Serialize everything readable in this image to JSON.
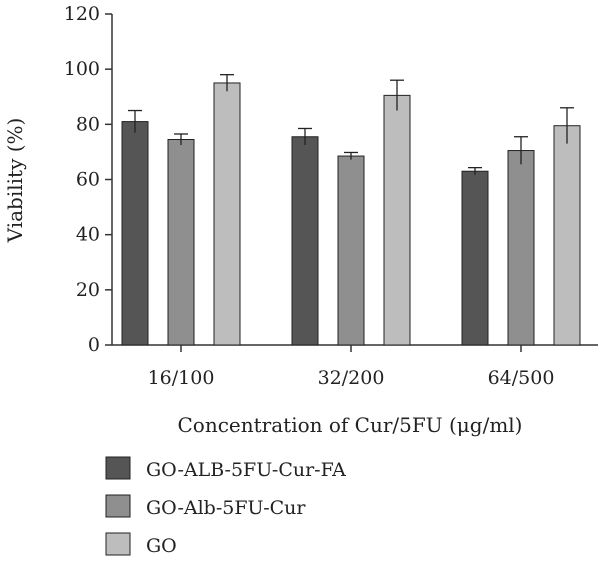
{
  "chart_data": {
    "type": "bar",
    "title": "",
    "xlabel": "Concentration of Cur/5FU (μg/ml)",
    "ylabel": "Viability (%)",
    "ylim": [
      0,
      120
    ],
    "yticks": [
      0,
      20,
      40,
      60,
      80,
      100,
      120
    ],
    "categories": [
      "16/100",
      "32/200",
      "64/500"
    ],
    "grid": false,
    "legend_position": "bottom-left",
    "error_bars": true,
    "series": [
      {
        "name": "GO-ALB-5FU-Cur-FA",
        "color": "#555555",
        "values": [
          81,
          75.5,
          63
        ],
        "errors": [
          4,
          3,
          1.3
        ]
      },
      {
        "name": "GO-Alb-5FU-Cur",
        "color": "#8f8f8f",
        "values": [
          74.5,
          68.5,
          70.5
        ],
        "errors": [
          2,
          1.3,
          5
        ]
      },
      {
        "name": "GO",
        "color": "#bdbdbd",
        "values": [
          95,
          90.5,
          79.5
        ],
        "errors": [
          3,
          5.5,
          6.5
        ]
      }
    ]
  }
}
